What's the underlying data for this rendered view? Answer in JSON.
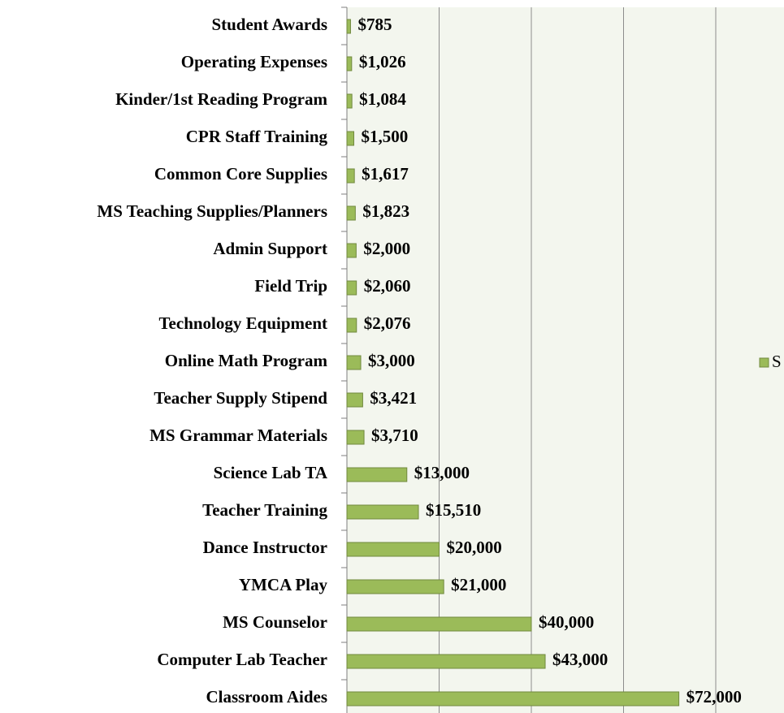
{
  "chart_data": {
    "type": "bar",
    "orientation": "horizontal",
    "categories": [
      "Student Awards",
      "Operating Expenses",
      "Kinder/1st Reading Program",
      "CPR Staff Training",
      "Common Core Supplies",
      "MS Teaching Supplies/Planners",
      "Admin Support",
      "Field Trip",
      "Technology Equipment",
      "Online Math Program",
      "Teacher Supply Stipend",
      "MS Grammar Materials",
      "Science Lab TA",
      "Teacher Training",
      "Dance Instructor",
      "YMCA Play",
      "MS Counselor",
      "Computer Lab Teacher",
      "Classroom Aides"
    ],
    "series": [
      {
        "name": "S",
        "color": "#9bbb59",
        "values": [
          785,
          1026,
          1084,
          1500,
          1617,
          1823,
          2000,
          2060,
          2076,
          3000,
          3421,
          3710,
          13000,
          15510,
          20000,
          21000,
          40000,
          43000,
          72000
        ],
        "value_labels": [
          "$785",
          "$1,026",
          "$1,084",
          "$1,500",
          "$1,617",
          "$1,823",
          "$2,000",
          "$2,060",
          "$2,076",
          "$3,000",
          "$3,421",
          "$3,710",
          "$13,000",
          "$15,510",
          "$20,000",
          "$21,000",
          "$40,000",
          "$43,000",
          "$72,000"
        ]
      }
    ],
    "xlim": [
      0,
      80000
    ],
    "xticks": [
      0,
      20000,
      40000,
      60000,
      80000
    ],
    "grid": true,
    "legend": "right"
  }
}
